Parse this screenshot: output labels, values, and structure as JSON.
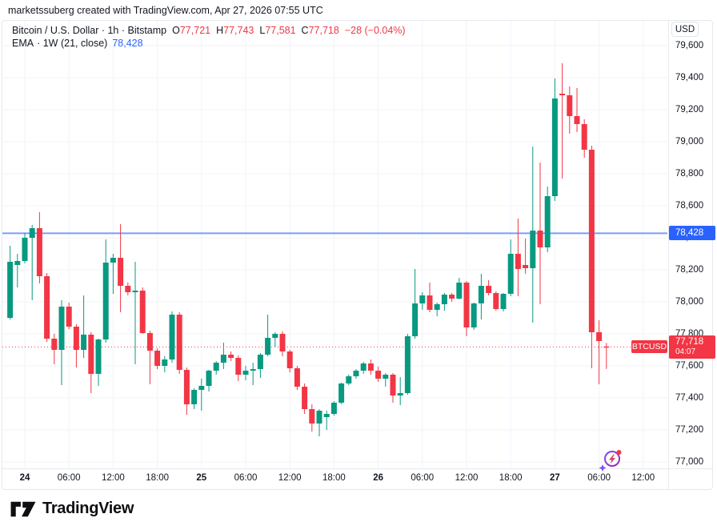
{
  "attribution": "marketssuberg created with TradingView.com, Apr 27, 2026 07:55 UTC",
  "legend": {
    "title": "Bitcoin / U.S. Dollar · 1h · Bitstamp",
    "ohlc": {
      "o_label": "O",
      "o_value": "77,721",
      "h_label": "H",
      "h_value": "77,743",
      "l_label": "L",
      "l_value": "77,581",
      "c_label": "C",
      "c_value": "77,718",
      "change": "−28 (−0.04%)"
    },
    "indicator": {
      "name": "EMA",
      "args": "· 1W (21, close)",
      "value": "78,428"
    }
  },
  "price_axis": {
    "currency": "USD",
    "ema_badge": "78,428",
    "price_badge": {
      "price": "77,718",
      "countdown": "04:07"
    }
  },
  "symbol_label": "BTCUSD",
  "footer": {
    "brand": "TradingView"
  },
  "colors": {
    "up": "#089981",
    "down": "#f23645",
    "ema_line": "#2962ff",
    "grid": "#f0f3fa",
    "badge_blue": "#2962ff",
    "badge_red": "#f23645"
  },
  "chart_data": {
    "type": "candlestick",
    "title": "Bitcoin / U.S. Dollar 1h Bitstamp (BTCUSD)",
    "ylabel": "USD",
    "ylim": [
      76950,
      79760
    ],
    "grid": true,
    "last_price": 77718,
    "ema": {
      "label": "EMA 1W (21, close)",
      "value": 78428
    },
    "price_ticks": [
      77000,
      77200,
      77400,
      77600,
      77800,
      78000,
      78200,
      78400,
      78600,
      78800,
      79000,
      79200,
      79400,
      79600
    ],
    "time_ticks": [
      {
        "i": 2,
        "label": "24",
        "bold": true
      },
      {
        "i": 8,
        "label": "06:00"
      },
      {
        "i": 14,
        "label": "12:00"
      },
      {
        "i": 20,
        "label": "18:00"
      },
      {
        "i": 26,
        "label": "25",
        "bold": true
      },
      {
        "i": 32,
        "label": "06:00"
      },
      {
        "i": 38,
        "label": "12:00"
      },
      {
        "i": 44,
        "label": "18:00"
      },
      {
        "i": 50,
        "label": "26",
        "bold": true
      },
      {
        "i": 56,
        "label": "06:00"
      },
      {
        "i": 62,
        "label": "12:00"
      },
      {
        "i": 68,
        "label": "18:00"
      },
      {
        "i": 74,
        "label": "27",
        "bold": true
      },
      {
        "i": 80,
        "label": "06:00"
      },
      {
        "i": 86,
        "label": "12:00"
      }
    ],
    "candles": [
      [
        "Apr 23 22:00",
        77900,
        78350,
        77890,
        78250
      ],
      [
        "Apr 23 23:00",
        78230,
        78300,
        78090,
        78255
      ],
      [
        "Apr 24 00:00",
        78255,
        78430,
        78240,
        78400
      ],
      [
        "Apr 24 01:00",
        78400,
        78480,
        78010,
        78460
      ],
      [
        "Apr 24 02:00",
        78460,
        78560,
        78115,
        78160
      ],
      [
        "Apr 24 03:00",
        78160,
        78180,
        77750,
        77770
      ],
      [
        "Apr 24 04:00",
        77770,
        77800,
        77610,
        77700
      ],
      [
        "Apr 24 05:00",
        77700,
        78010,
        77480,
        77970
      ],
      [
        "Apr 24 06:00",
        77970,
        77995,
        77830,
        77845
      ],
      [
        "Apr 24 07:00",
        77845,
        77860,
        77590,
        77700
      ],
      [
        "Apr 24 08:00",
        77700,
        78040,
        77650,
        77795
      ],
      [
        "Apr 24 09:00",
        77795,
        77810,
        77430,
        77550
      ],
      [
        "Apr 24 10:00",
        77550,
        77770,
        77475,
        77765
      ],
      [
        "Apr 24 11:00",
        77765,
        78390,
        77745,
        78245
      ],
      [
        "Apr 24 12:00",
        78245,
        78300,
        78050,
        78275
      ],
      [
        "Apr 24 13:00",
        78275,
        78485,
        77935,
        78100
      ],
      [
        "Apr 24 14:00",
        78100,
        78120,
        78040,
        78060
      ],
      [
        "Apr 24 15:00",
        78060,
        78250,
        77610,
        78070
      ],
      [
        "Apr 24 16:00",
        78070,
        78090,
        77800,
        77805
      ],
      [
        "Apr 24 17:00",
        77805,
        77820,
        77485,
        77695
      ],
      [
        "Apr 24 18:00",
        77695,
        77710,
        77580,
        77600
      ],
      [
        "Apr 24 19:00",
        77600,
        77660,
        77560,
        77640
      ],
      [
        "Apr 24 20:00",
        77640,
        77940,
        77620,
        77920
      ],
      [
        "Apr 24 21:00",
        77920,
        77935,
        77550,
        77575
      ],
      [
        "Apr 24 22:00",
        77575,
        77590,
        77295,
        77360
      ],
      [
        "Apr 24 23:00",
        77360,
        77460,
        77330,
        77450
      ],
      [
        "Apr 25 00:00",
        77450,
        77520,
        77320,
        77475
      ],
      [
        "Apr 25 01:00",
        77475,
        77575,
        77440,
        77570
      ],
      [
        "Apr 25 02:00",
        77570,
        77630,
        77545,
        77620
      ],
      [
        "Apr 25 03:00",
        77620,
        77745,
        77580,
        77670
      ],
      [
        "Apr 25 04:00",
        77670,
        77690,
        77630,
        77650
      ],
      [
        "Apr 25 05:00",
        77650,
        77665,
        77505,
        77545
      ],
      [
        "Apr 25 06:00",
        77545,
        77600,
        77510,
        77570
      ],
      [
        "Apr 25 07:00",
        77570,
        77620,
        77480,
        77580
      ],
      [
        "Apr 25 08:00",
        77580,
        77680,
        77525,
        77670
      ],
      [
        "Apr 25 09:00",
        77670,
        77920,
        77660,
        77775
      ],
      [
        "Apr 25 10:00",
        77775,
        77810,
        77720,
        77800
      ],
      [
        "Apr 25 11:00",
        77800,
        77815,
        77660,
        77690
      ],
      [
        "Apr 25 12:00",
        77690,
        77700,
        77560,
        77585
      ],
      [
        "Apr 25 13:00",
        77585,
        77600,
        77450,
        77470
      ],
      [
        "Apr 25 14:00",
        77470,
        77490,
        77300,
        77330
      ],
      [
        "Apr 25 15:00",
        77330,
        77360,
        77190,
        77240
      ],
      [
        "Apr 25 16:00",
        77240,
        77330,
        77160,
        77320
      ],
      [
        "Apr 25 17:00",
        77280,
        77320,
        77200,
        77300
      ],
      [
        "Apr 25 18:00",
        77300,
        77380,
        77290,
        77370
      ],
      [
        "Apr 25 19:00",
        77370,
        77495,
        77360,
        77490
      ],
      [
        "Apr 25 20:00",
        77490,
        77545,
        77480,
        77535
      ],
      [
        "Apr 25 21:00",
        77535,
        77580,
        77520,
        77570
      ],
      [
        "Apr 25 22:00",
        77570,
        77625,
        77550,
        77615
      ],
      [
        "Apr 25 23:00",
        77615,
        77640,
        77545,
        77570
      ],
      [
        "Apr 26 00:00",
        77570,
        77595,
        77500,
        77520
      ],
      [
        "Apr 26 01:00",
        77520,
        77555,
        77470,
        77545
      ],
      [
        "Apr 26 02:00",
        77545,
        77555,
        77370,
        77415
      ],
      [
        "Apr 26 03:00",
        77415,
        77530,
        77355,
        77430
      ],
      [
        "Apr 26 04:00",
        77430,
        77800,
        77420,
        77785
      ],
      [
        "Apr 26 05:00",
        77785,
        78205,
        77770,
        77990
      ],
      [
        "Apr 26 06:00",
        77990,
        78060,
        77950,
        78040
      ],
      [
        "Apr 26 07:00",
        78040,
        78120,
        77935,
        77950
      ],
      [
        "Apr 26 08:00",
        77950,
        77995,
        77910,
        77985
      ],
      [
        "Apr 26 09:00",
        77985,
        78055,
        77945,
        78045
      ],
      [
        "Apr 26 10:00",
        78045,
        78055,
        78000,
        78020
      ],
      [
        "Apr 26 11:00",
        78020,
        78150,
        78015,
        78120
      ],
      [
        "Apr 26 12:00",
        78120,
        78130,
        77785,
        77840
      ],
      [
        "Apr 26 13:00",
        77840,
        77995,
        77825,
        77990
      ],
      [
        "Apr 26 14:00",
        77990,
        78175,
        77890,
        78100
      ],
      [
        "Apr 26 15:00",
        78100,
        78135,
        78040,
        78055
      ],
      [
        "Apr 26 16:00",
        78055,
        78065,
        77945,
        77955
      ],
      [
        "Apr 26 17:00",
        77955,
        78055,
        77940,
        78050
      ],
      [
        "Apr 26 18:00",
        78050,
        78390,
        78035,
        78300
      ],
      [
        "Apr 26 19:00",
        78300,
        78520,
        78035,
        78205
      ],
      [
        "Apr 26 20:00",
        78230,
        78395,
        78175,
        78210
      ],
      [
        "Apr 26 21:00",
        78210,
        78970,
        77870,
        78445
      ],
      [
        "Apr 26 22:00",
        78445,
        78870,
        77985,
        78340
      ],
      [
        "Apr 26 23:00",
        78340,
        78720,
        78310,
        78660
      ],
      [
        "Apr 27 00:00",
        78660,
        79395,
        78630,
        79270
      ],
      [
        "Apr 27 01:00",
        79300,
        79490,
        78770,
        79290
      ],
      [
        "Apr 27 02:00",
        79290,
        79345,
        79050,
        79160
      ],
      [
        "Apr 27 03:00",
        79160,
        79335,
        79060,
        79110
      ],
      [
        "Apr 27 04:00",
        79110,
        79140,
        78900,
        78950
      ],
      [
        "Apr 27 05:00",
        78950,
        78975,
        77585,
        77810
      ],
      [
        "Apr 27 06:00",
        77810,
        77885,
        77485,
        77755
      ],
      [
        "Apr 27 07:00",
        77721,
        77743,
        77581,
        77718
      ]
    ]
  }
}
